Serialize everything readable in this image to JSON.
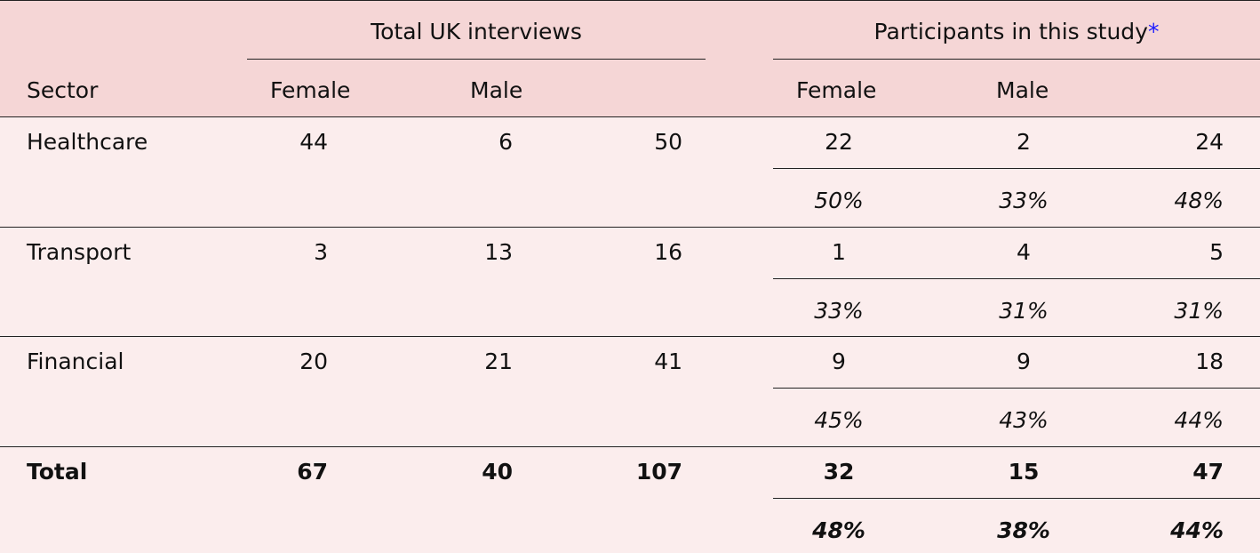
{
  "table": {
    "group_headers": [
      "Total UK interviews",
      "Participants in this study"
    ],
    "footnote_mark": "*",
    "columns": [
      "Sector",
      "Female",
      "Male",
      "Female",
      "Male"
    ],
    "rows": [
      {
        "sector": "Healthcare",
        "total_uk": [
          44,
          6,
          50
        ],
        "participants": [
          22,
          2,
          24
        ],
        "shares": [
          "50%",
          "33%",
          "48%"
        ]
      },
      {
        "sector": "Transport",
        "total_uk": [
          3,
          13,
          16
        ],
        "participants": [
          1,
          4,
          5
        ],
        "shares": [
          "33%",
          "31%",
          "31%"
        ]
      },
      {
        "sector": "Financial",
        "total_uk": [
          20,
          21,
          41
        ],
        "participants": [
          9,
          9,
          18
        ],
        "shares": [
          "45%",
          "43%",
          "44%"
        ]
      },
      {
        "sector": "Total",
        "total_uk": [
          67,
          40,
          107
        ],
        "participants": [
          32,
          15,
          47
        ],
        "shares": [
          "48%",
          "38%",
          "44%"
        ],
        "bold": true
      }
    ]
  }
}
